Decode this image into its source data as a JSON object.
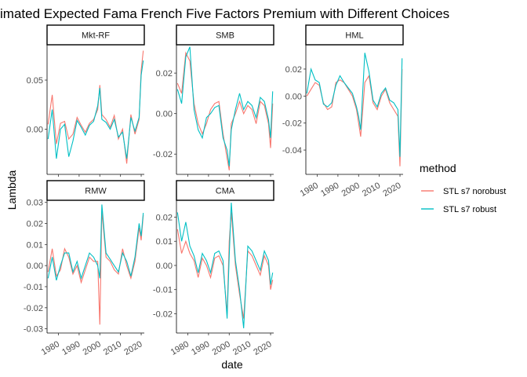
{
  "chart_data": {
    "type": "line",
    "title": "imated Expected Fama French Five Factors Premium with Different Choices",
    "xlabel": "date",
    "ylabel": "Lambda",
    "x_ticks": [
      "1980",
      "1990",
      "2000",
      "2010",
      "2020"
    ],
    "xlim": [
      1974.5,
      2021.5
    ],
    "legend": {
      "title": "method",
      "placement": "right",
      "entries": [
        {
          "label": "STL s7 norobust",
          "color": "#F8766D"
        },
        {
          "label": "STL s7 robust",
          "color": "#00BFC4"
        }
      ]
    },
    "x": [
      1975,
      1977,
      1979,
      1981,
      1983,
      1985,
      1987,
      1989,
      1991,
      1993,
      1995,
      1997,
      1999,
      2000,
      2001,
      2003,
      2005,
      2007,
      2009,
      2011,
      2013,
      2015,
      2017,
      2019,
      2020,
      2021
    ],
    "panels": [
      {
        "name": "Mkt-RF",
        "ylim": [
          -0.046,
          0.086
        ],
        "y_ticks": [
          0.0,
          0.05
        ],
        "y_tick_labels": [
          "0.00",
          "0.05"
        ],
        "series": [
          {
            "name": "STL s7 norobust",
            "color": "#F8766D",
            "values": [
              0.005,
              0.035,
              -0.015,
              0.006,
              0.008,
              -0.01,
              -0.005,
              0.012,
              0.004,
              -0.003,
              0.006,
              0.01,
              0.02,
              0.045,
              0.015,
              0.01,
              0.002,
              0.014,
              -0.01,
              0.0,
              -0.035,
              0.015,
              -0.005,
              0.01,
              0.06,
              0.08
            ]
          },
          {
            "name": "STL s7 robust",
            "color": "#00BFC4",
            "values": [
              -0.01,
              0.02,
              -0.03,
              0.0,
              0.005,
              -0.028,
              -0.012,
              0.009,
              0.002,
              -0.006,
              0.004,
              0.008,
              0.024,
              0.042,
              0.01,
              0.007,
              0.0,
              0.01,
              -0.008,
              -0.003,
              -0.03,
              0.012,
              -0.002,
              0.012,
              0.055,
              0.07
            ]
          }
        ]
      },
      {
        "name": "SMB",
        "ylim": [
          -0.03,
          0.034
        ],
        "y_ticks": [
          -0.02,
          0.0,
          0.02
        ],
        "y_tick_labels": [
          "-0.02",
          "0.00",
          "0.02"
        ],
        "series": [
          {
            "name": "STL s7 norobust",
            "color": "#F8766D",
            "values": [
              0.015,
              0.01,
              0.03,
              0.026,
              0.005,
              -0.005,
              -0.01,
              -0.005,
              0.002,
              0.005,
              0.006,
              -0.01,
              -0.022,
              -0.028,
              -0.005,
              0.0,
              0.006,
              0.0,
              0.004,
              0.002,
              -0.005,
              0.006,
              0.004,
              -0.005,
              -0.017,
              0.005
            ]
          },
          {
            "name": "STL s7 robust",
            "color": "#00BFC4",
            "values": [
              0.012,
              0.005,
              0.028,
              0.033,
              0.002,
              -0.008,
              -0.012,
              -0.002,
              0.0,
              0.003,
              0.004,
              -0.012,
              -0.018,
              -0.026,
              -0.008,
              0.002,
              0.01,
              0.002,
              0.006,
              0.004,
              -0.002,
              0.008,
              0.006,
              -0.003,
              -0.012,
              0.011
            ]
          }
        ]
      },
      {
        "name": "HML",
        "ylim": [
          -0.058,
          0.038
        ],
        "y_ticks": [
          -0.04,
          -0.02,
          0.0,
          0.02
        ],
        "y_tick_labels": [
          "-0.04",
          "-0.02",
          "0.00",
          "0.02"
        ],
        "series": [
          {
            "name": "STL s7 norobust",
            "color": "#F8766D",
            "values": [
              0.0,
              0.005,
              0.01,
              0.008,
              -0.005,
              -0.01,
              -0.008,
              0.01,
              0.012,
              0.01,
              0.005,
              0.0,
              -0.01,
              -0.02,
              -0.03,
              0.01,
              0.015,
              -0.005,
              -0.01,
              0.0,
              0.005,
              -0.005,
              -0.01,
              -0.015,
              -0.052,
              0.02
            ]
          },
          {
            "name": "STL s7 robust",
            "color": "#00BFC4",
            "values": [
              0.002,
              0.02,
              0.012,
              0.01,
              -0.006,
              -0.008,
              -0.005,
              0.008,
              0.015,
              0.01,
              0.006,
              0.002,
              -0.008,
              -0.015,
              -0.025,
              0.032,
              0.018,
              -0.003,
              -0.008,
              0.002,
              0.006,
              -0.003,
              -0.005,
              -0.01,
              -0.045,
              0.028
            ]
          }
        ]
      },
      {
        "name": "RMW",
        "ylim": [
          -0.032,
          0.031
        ],
        "y_ticks": [
          -0.03,
          -0.02,
          -0.01,
          0.0,
          0.01,
          0.02,
          0.03
        ],
        "y_tick_labels": [
          "-0.03",
          "-0.02",
          "-0.01",
          "0.00",
          "0.01",
          "0.02",
          "0.03"
        ],
        "series": [
          {
            "name": "STL s7 norobust",
            "color": "#F8766D",
            "values": [
              -0.003,
              0.008,
              -0.005,
              -0.002,
              0.008,
              0.004,
              -0.004,
              0.0,
              -0.008,
              -0.002,
              0.004,
              0.002,
              0.002,
              -0.028,
              0.026,
              0.004,
              0.002,
              -0.002,
              -0.004,
              0.008,
              0.0,
              -0.006,
              0.002,
              0.018,
              0.012,
              0.024
            ]
          },
          {
            "name": "STL s7 robust",
            "color": "#00BFC4",
            "values": [
              -0.006,
              0.004,
              -0.007,
              0.0,
              0.006,
              0.006,
              -0.003,
              0.002,
              -0.006,
              0.0,
              0.006,
              0.004,
              0.0,
              -0.006,
              0.029,
              0.006,
              0.003,
              0.0,
              -0.003,
              0.006,
              0.002,
              -0.005,
              0.004,
              0.02,
              0.014,
              0.025
            ]
          }
        ]
      },
      {
        "name": "CMA",
        "ylim": [
          -0.028,
          0.027
        ],
        "y_ticks": [
          -0.02,
          -0.01,
          0.0,
          0.01,
          0.02
        ],
        "y_tick_labels": [
          "-0.02",
          "-0.01",
          "0.00",
          "0.01",
          "0.02"
        ],
        "series": [
          {
            "name": "STL s7 norobust",
            "color": "#F8766D",
            "values": [
              0.015,
              0.005,
              0.01,
              0.005,
              0.002,
              -0.005,
              0.003,
              0.0,
              -0.005,
              0.003,
              0.004,
              0.0,
              -0.02,
              0.01,
              0.022,
              0.0,
              -0.012,
              -0.022,
              0.006,
              0.004,
              0.0,
              -0.004,
              0.004,
              0.0,
              -0.01,
              -0.006
            ]
          },
          {
            "name": "STL s7 robust",
            "color": "#00BFC4",
            "values": [
              0.022,
              0.01,
              0.018,
              0.008,
              0.004,
              -0.003,
              0.005,
              0.002,
              -0.003,
              0.005,
              0.006,
              0.002,
              -0.022,
              0.004,
              0.026,
              0.002,
              -0.01,
              -0.026,
              0.008,
              0.006,
              0.002,
              -0.002,
              0.006,
              0.002,
              -0.008,
              -0.003
            ]
          }
        ]
      }
    ]
  }
}
